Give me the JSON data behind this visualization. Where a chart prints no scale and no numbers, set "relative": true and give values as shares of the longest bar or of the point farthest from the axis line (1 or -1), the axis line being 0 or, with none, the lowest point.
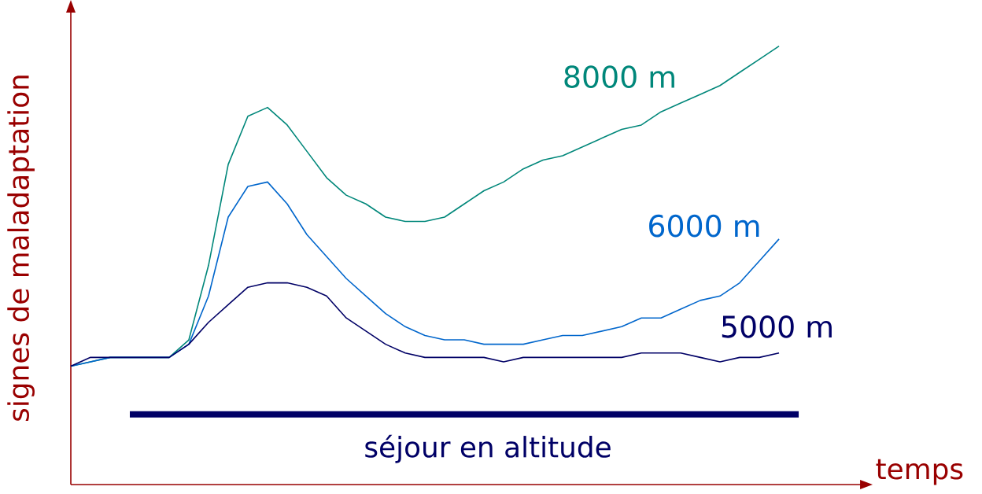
{
  "chart_data": {
    "type": "line",
    "relative": true,
    "xlabel": "temps",
    "ylabel": "signes de maladaptation",
    "categories": [
      null,
      null,
      null,
      null,
      null,
      null,
      null,
      null,
      null,
      null,
      null,
      null,
      null,
      null,
      null,
      null,
      null,
      null,
      null,
      null,
      null,
      null,
      null,
      null,
      null,
      null,
      null,
      null,
      null,
      null,
      null,
      null,
      null,
      null,
      null,
      null,
      null,
      null
    ],
    "series": [
      {
        "name": "8000 m",
        "color": "#00877a",
        "values": [
          0.27,
          0.28,
          0.29,
          0.29,
          0.29,
          0.29,
          0.33,
          0.5,
          0.73,
          0.84,
          0.86,
          0.82,
          0.76,
          0.7,
          0.66,
          0.64,
          0.61,
          0.6,
          0.6,
          0.61,
          0.64,
          0.67,
          0.69,
          0.72,
          0.74,
          0.75,
          0.77,
          0.79,
          0.81,
          0.82,
          0.85,
          0.87,
          0.89,
          0.91,
          0.94,
          0.97,
          1.0,
          null
        ]
      },
      {
        "name": "6000 m",
        "color": "#0066cc",
        "values": [
          0.27,
          0.28,
          0.29,
          0.29,
          0.29,
          0.29,
          0.32,
          0.43,
          0.61,
          0.68,
          0.69,
          0.64,
          0.57,
          0.52,
          0.47,
          0.43,
          0.39,
          0.36,
          0.34,
          0.33,
          0.33,
          0.32,
          0.32,
          0.32,
          0.33,
          0.34,
          0.34,
          0.35,
          0.36,
          0.38,
          0.38,
          0.4,
          0.42,
          0.43,
          0.46,
          0.51,
          0.56,
          null
        ]
      },
      {
        "name": "5000 m",
        "color": "#000066",
        "values": [
          0.27,
          0.29,
          0.29,
          0.29,
          0.29,
          0.29,
          0.32,
          0.37,
          0.41,
          0.45,
          0.46,
          0.46,
          0.45,
          0.43,
          0.38,
          0.35,
          0.32,
          0.3,
          0.29,
          0.29,
          0.29,
          0.29,
          0.28,
          0.29,
          0.29,
          0.29,
          0.29,
          0.29,
          0.29,
          0.3,
          0.3,
          0.3,
          0.29,
          0.28,
          0.29,
          0.29,
          0.3,
          null
        ]
      },
      {
        "color": "#000066",
        "values": [
          null,
          null,
          null,
          0.16,
          0.16,
          0.16,
          0.16,
          0.16,
          0.16,
          0.16,
          0.16,
          0.16,
          0.16,
          0.16,
          0.16,
          0.16,
          0.16,
          0.16,
          0.16,
          0.16,
          0.16,
          0.16,
          0.16,
          0.16,
          0.16,
          0.16,
          0.16,
          0.16,
          0.16,
          0.16,
          0.16,
          0.16,
          0.16,
          0.16,
          0.16,
          0.16,
          0.16,
          0.16
        ]
      }
    ],
    "annotations": [
      "séjour en altitude"
    ]
  }
}
